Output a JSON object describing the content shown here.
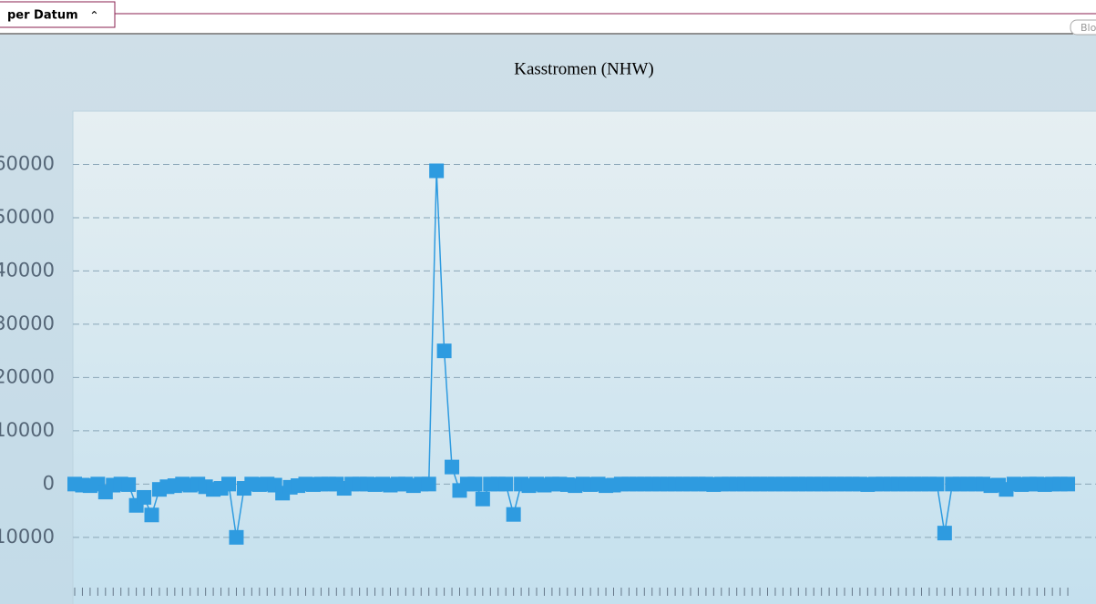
{
  "header": {
    "tab": "per Datum",
    "button": "Blo"
  },
  "chart_data": {
    "type": "line",
    "title": "Kasstromen (NHW)",
    "series": [
      {
        "color": "#2e9be0",
        "values": [
          0,
          -200,
          -300,
          0,
          -1500,
          -200,
          0,
          -100,
          -4000,
          -2500,
          -5800,
          -1000,
          -500,
          -300,
          0,
          -200,
          0,
          -500,
          -1000,
          -800,
          0,
          -10000,
          -800,
          0,
          -100,
          0,
          -200,
          -1700,
          -600,
          -300,
          0,
          -100,
          0,
          0,
          0,
          -800,
          0,
          0,
          0,
          -100,
          0,
          -200,
          0,
          0,
          -300,
          0,
          0,
          58800,
          25000,
          3200,
          -1200,
          0,
          0,
          -2800,
          0,
          0,
          0,
          -5700,
          0,
          -300,
          0,
          -200,
          0,
          0,
          -100,
          -300,
          0,
          -100,
          0,
          -300,
          -200,
          0,
          0,
          0,
          0,
          0,
          0,
          0,
          0,
          0,
          0,
          0,
          0,
          -100,
          0,
          0,
          0,
          0,
          0,
          0,
          0,
          0,
          0,
          0,
          0,
          0,
          0,
          0,
          0,
          0,
          0,
          0,
          0,
          -100,
          0,
          0,
          0,
          0,
          0,
          0,
          0,
          0,
          0,
          -9200,
          0,
          0,
          0,
          0,
          0,
          -300,
          -200,
          -1000,
          0,
          -100,
          0,
          0,
          -100,
          0,
          0,
          0
        ]
      }
    ],
    "ylim": [
      -22000,
      70000
    ],
    "yticks": [
      -10000,
      0,
      10000,
      20000,
      30000,
      40000,
      50000,
      60000
    ],
    "grid": true
  }
}
